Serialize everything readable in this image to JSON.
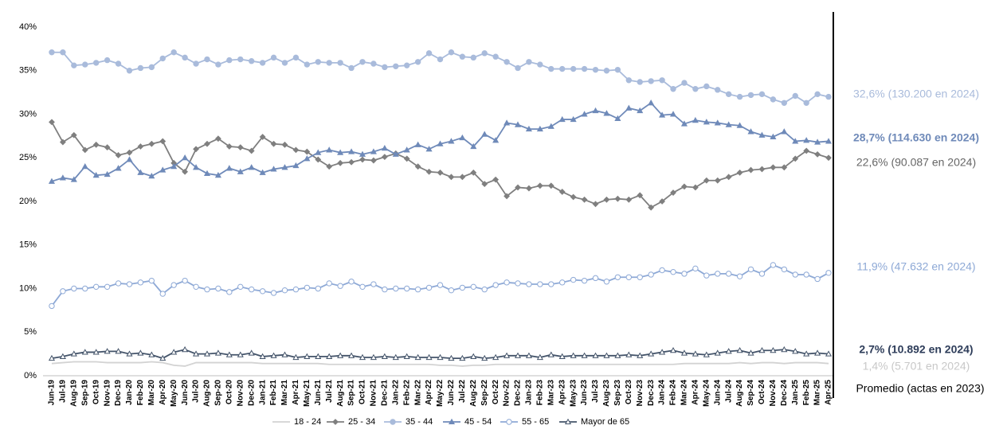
{
  "chart_data": {
    "type": "line",
    "categories": [
      "Jun-19",
      "Jul-19",
      "Aug-19",
      "Sep-19",
      "Oct-19",
      "Nov-19",
      "Dec-19",
      "Jan-20",
      "Feb-20",
      "Mar-20",
      "Apr-20",
      "May-20",
      "Jun-20",
      "Jul-20",
      "Aug-20",
      "Sep-20",
      "Oct-20",
      "Nov-20",
      "Dec-20",
      "Jan-21",
      "Feb-21",
      "Mar-21",
      "Apr-21",
      "May-21",
      "Jun-21",
      "Jul-21",
      "Aug-21",
      "Sep-21",
      "Oct-21",
      "Nov-21",
      "Dec-21",
      "Jan-22",
      "Feb-22",
      "Mar-22",
      "Apr-22",
      "May-22",
      "Jun-22",
      "Jul-22",
      "Aug-22",
      "Sep-22",
      "Oct-22",
      "Nov-22",
      "Dec-22",
      "Jan-23",
      "Feb-23",
      "Mar-23",
      "Apr-23",
      "May-23",
      "Jun-23",
      "Jul-23",
      "Aug-23",
      "Sep-23",
      "Oct-23",
      "Nov-23",
      "Dec-23",
      "Jan-24",
      "Feb-24",
      "Mar-24",
      "Apr-24",
      "May-24",
      "Jun-24",
      "Jul-24",
      "Aug-24",
      "Sep-24",
      "Oct-24",
      "Nov-24",
      "Dec-24",
      "Jan-25",
      "Feb-25",
      "Mar-25",
      "Apr-25"
    ],
    "series": [
      {
        "name": "18 - 24",
        "color": "#d3d3d3",
        "marker": "none",
        "values": [
          1.4,
          1.5,
          1.6,
          1.6,
          1.6,
          1.5,
          1.5,
          1.5,
          1.5,
          1.6,
          1.5,
          1.2,
          1.1,
          1.5,
          1.5,
          1.5,
          1.5,
          1.5,
          1.5,
          1.4,
          1.4,
          1.4,
          1.4,
          1.4,
          1.4,
          1.3,
          1.3,
          1.3,
          1.3,
          1.3,
          1.3,
          1.3,
          1.3,
          1.3,
          1.3,
          1.2,
          1.2,
          1.1,
          1.2,
          1.2,
          1.3,
          1.3,
          1.3,
          1.3,
          1.3,
          1.3,
          1.3,
          1.3,
          1.3,
          1.3,
          1.3,
          1.3,
          1.3,
          1.3,
          1.3,
          1.3,
          1.3,
          1.4,
          1.4,
          1.4,
          1.4,
          1.4,
          1.5,
          1.4,
          1.5,
          1.5,
          1.4,
          1.5,
          1.5,
          1.5,
          1.4
        ]
      },
      {
        "name": "25 - 34",
        "color": "#7f7f7f",
        "marker": "diamond",
        "values": [
          29.1,
          26.8,
          27.6,
          25.9,
          26.5,
          26.2,
          25.3,
          25.6,
          26.3,
          26.6,
          26.9,
          24.4,
          23.4,
          26.0,
          26.6,
          27.2,
          26.3,
          26.2,
          25.8,
          27.4,
          26.6,
          26.5,
          25.9,
          25.7,
          24.8,
          24.0,
          24.4,
          24.5,
          24.8,
          24.7,
          25.1,
          25.5,
          24.9,
          24.0,
          23.4,
          23.3,
          22.8,
          22.8,
          23.3,
          22.0,
          22.5,
          20.6,
          21.6,
          21.5,
          21.8,
          21.8,
          21.1,
          20.5,
          20.2,
          19.7,
          20.2,
          20.3,
          20.2,
          20.7,
          19.3,
          20.0,
          21.0,
          21.7,
          21.6,
          22.4,
          22.4,
          22.8,
          23.3,
          23.6,
          23.7,
          23.9,
          23.9,
          24.9,
          25.8,
          25.4,
          25.0
        ]
      },
      {
        "name": "35 - 44",
        "color": "#a9bbdb",
        "marker": "circle",
        "values": [
          37.1,
          37.1,
          35.6,
          35.7,
          35.9,
          36.2,
          35.8,
          35.0,
          35.3,
          35.4,
          36.4,
          37.1,
          36.5,
          35.8,
          36.3,
          35.7,
          36.2,
          36.3,
          36.1,
          35.9,
          36.5,
          35.9,
          36.5,
          35.7,
          36.0,
          35.9,
          35.9,
          35.3,
          36.0,
          35.8,
          35.4,
          35.5,
          35.6,
          36.0,
          37.0,
          36.3,
          37.1,
          36.6,
          36.5,
          37.0,
          36.6,
          36.0,
          35.3,
          36.0,
          35.7,
          35.2,
          35.2,
          35.2,
          35.2,
          35.1,
          35.0,
          35.1,
          33.9,
          33.7,
          33.8,
          33.9,
          32.9,
          33.6,
          32.9,
          33.2,
          32.8,
          32.3,
          32.0,
          32.2,
          32.3,
          31.7,
          31.3,
          32.1,
          31.3,
          32.3,
          32.0
        ]
      },
      {
        "name": "45 - 54",
        "color": "#6f8ab9",
        "marker": "triangle",
        "values": [
          22.3,
          22.7,
          22.5,
          24.0,
          23.0,
          23.1,
          23.8,
          24.8,
          23.3,
          22.9,
          23.6,
          24.0,
          25.0,
          23.9,
          23.2,
          23.0,
          23.8,
          23.4,
          23.9,
          23.3,
          23.7,
          23.9,
          24.1,
          24.9,
          25.6,
          25.9,
          25.6,
          25.7,
          25.4,
          25.7,
          26.1,
          25.4,
          25.9,
          26.5,
          26.0,
          26.6,
          26.9,
          27.3,
          26.3,
          27.7,
          27.0,
          29.0,
          28.8,
          28.3,
          28.3,
          28.6,
          29.4,
          29.4,
          30.0,
          30.4,
          30.1,
          29.5,
          30.7,
          30.4,
          31.3,
          29.9,
          30.0,
          28.9,
          29.3,
          29.1,
          29.0,
          28.8,
          28.7,
          28.0,
          27.6,
          27.4,
          28.0,
          26.9,
          27.0,
          26.8,
          26.9
        ]
      },
      {
        "name": "55 - 65",
        "color": "#8ea9d6",
        "marker": "open-circle",
        "values": [
          8.0,
          9.7,
          10.0,
          10.0,
          10.2,
          10.2,
          10.6,
          10.5,
          10.7,
          10.9,
          9.4,
          10.4,
          10.9,
          10.2,
          9.9,
          10.0,
          9.6,
          10.2,
          9.9,
          9.7,
          9.5,
          9.8,
          9.9,
          10.1,
          10.0,
          10.6,
          10.3,
          10.8,
          10.2,
          10.5,
          9.9,
          10.0,
          10.0,
          9.9,
          10.1,
          10.4,
          9.8,
          10.1,
          10.2,
          9.9,
          10.4,
          10.7,
          10.6,
          10.5,
          10.5,
          10.5,
          10.7,
          11.0,
          10.9,
          11.2,
          10.8,
          11.3,
          11.3,
          11.3,
          11.6,
          12.1,
          11.9,
          11.7,
          12.3,
          11.5,
          11.7,
          11.7,
          11.4,
          12.2,
          11.7,
          12.7,
          12.2,
          11.6,
          11.6,
          11.1,
          11.8
        ]
      },
      {
        "name": "Mayor de 65",
        "color": "#44546a",
        "marker": "open-triangle",
        "values": [
          2.0,
          2.2,
          2.5,
          2.7,
          2.7,
          2.8,
          2.8,
          2.5,
          2.6,
          2.4,
          2.0,
          2.7,
          3.0,
          2.5,
          2.5,
          2.6,
          2.4,
          2.4,
          2.6,
          2.2,
          2.3,
          2.4,
          2.1,
          2.2,
          2.2,
          2.2,
          2.3,
          2.3,
          2.1,
          2.1,
          2.2,
          2.1,
          2.2,
          2.1,
          2.1,
          2.1,
          2.0,
          2.0,
          2.2,
          2.0,
          2.1,
          2.3,
          2.3,
          2.3,
          2.1,
          2.4,
          2.2,
          2.3,
          2.3,
          2.3,
          2.3,
          2.3,
          2.4,
          2.3,
          2.5,
          2.7,
          2.9,
          2.6,
          2.5,
          2.4,
          2.6,
          2.8,
          2.9,
          2.6,
          2.9,
          2.9,
          3.0,
          2.8,
          2.5,
          2.6,
          2.5
        ]
      }
    ],
    "ylim": [
      0,
      40
    ],
    "yticks": [
      {
        "value": 0,
        "label": "0%"
      },
      {
        "value": 5,
        "label": "5%"
      },
      {
        "value": 10,
        "label": "10%"
      },
      {
        "value": 15,
        "label": "15%"
      },
      {
        "value": 20,
        "label": "20%"
      },
      {
        "value": 25,
        "label": "25%"
      },
      {
        "value": 30,
        "label": "30%"
      },
      {
        "value": 35,
        "label": "35%"
      },
      {
        "value": 40,
        "label": "40%"
      }
    ],
    "grid": false,
    "legend": "bottom",
    "annotations": [
      {
        "text": "32,6% (130.200 en 2024)",
        "color": "#a9bbdb"
      },
      {
        "text": "28,7% (114.630 en 2024)",
        "color": "#6f8ab9"
      },
      {
        "text": "22,6% (90.087 en 2024)",
        "color": "#666666"
      },
      {
        "text": "11,9% (47.632 en 2024)",
        "color": "#8ea9d6"
      },
      {
        "text": "2,7% (10.892 en 2024)",
        "color": "#2e3d5a"
      },
      {
        "text": "1,4% (5.701 en 2024)",
        "color": "#c8c8c8"
      },
      {
        "text": "Promedio (actas en 2023)",
        "color": "#000000"
      }
    ]
  }
}
